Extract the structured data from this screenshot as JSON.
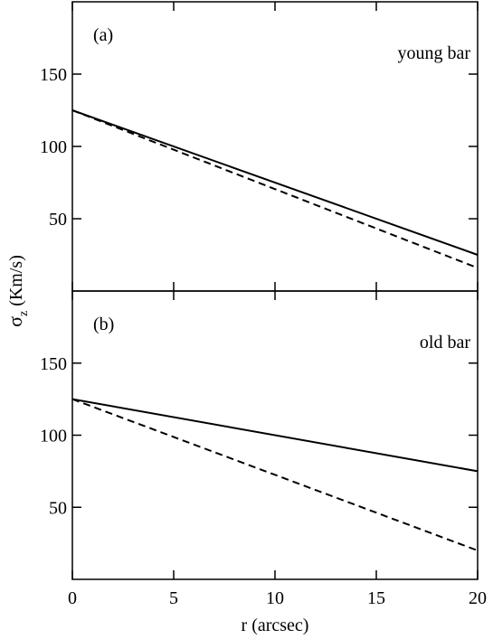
{
  "chart_data": [
    {
      "type": "line",
      "panel_label": "(a)",
      "annotation": "young bar",
      "ylabel": {
        "symbol": "σ",
        "subscript": "z",
        "unit": "(Km/s)"
      },
      "x": [
        0,
        20
      ],
      "series": [
        {
          "color": "#000000",
          "line_style": "solid",
          "values": [
            125,
            25
          ]
        },
        {
          "color": "#000000",
          "line_style": "dashed",
          "values": [
            125,
            16
          ]
        }
      ],
      "xlim": [
        0,
        20
      ],
      "xticks": [
        0,
        5,
        10,
        15,
        20
      ],
      "show_xtick_labels": false,
      "ylim": [
        0,
        200
      ],
      "yticks": [
        50,
        100,
        150
      ]
    },
    {
      "type": "line",
      "panel_label": "(b)",
      "annotation": "old bar",
      "xlabel": "r (arcsec)",
      "x": [
        0,
        20
      ],
      "series": [
        {
          "color": "#000000",
          "line_style": "solid",
          "values": [
            125,
            75
          ]
        },
        {
          "color": "#000000",
          "line_style": "dashed",
          "values": [
            125,
            20
          ]
        }
      ],
      "xlim": [
        0,
        20
      ],
      "xticks": [
        0,
        5,
        10,
        15,
        20
      ],
      "show_xtick_labels": true,
      "ylim": [
        0,
        200
      ],
      "yticks": [
        50,
        100,
        150
      ]
    }
  ]
}
